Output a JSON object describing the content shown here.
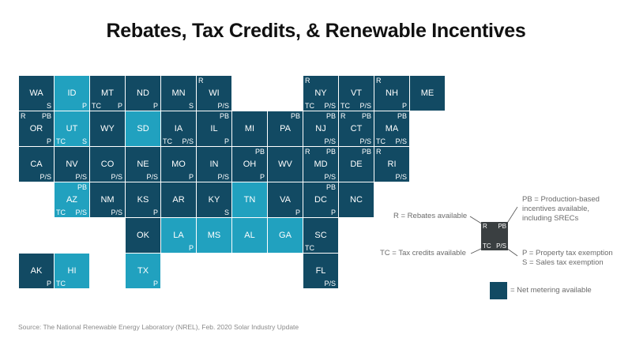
{
  "title": "Rebates, Tax Credits, & Renewable Incentives",
  "colors": {
    "net_metering": "#124a63",
    "no_net_metering": "#21a1bf",
    "legend_example": "#3a3f41"
  },
  "states": [
    {
      "ab": "WA",
      "col": 0,
      "row": 0,
      "net": true,
      "R": false,
      "PB": false,
      "TC": false,
      "PS": "S"
    },
    {
      "ab": "ID",
      "col": 1,
      "row": 0,
      "net": false,
      "R": false,
      "PB": false,
      "TC": false,
      "PS": "P"
    },
    {
      "ab": "MT",
      "col": 2,
      "row": 0,
      "net": true,
      "R": false,
      "PB": false,
      "TC": true,
      "PS": "P"
    },
    {
      "ab": "ND",
      "col": 3,
      "row": 0,
      "net": true,
      "R": false,
      "PB": false,
      "TC": false,
      "PS": "P"
    },
    {
      "ab": "MN",
      "col": 4,
      "row": 0,
      "net": true,
      "R": false,
      "PB": false,
      "TC": false,
      "PS": "S"
    },
    {
      "ab": "WI",
      "col": 5,
      "row": 0,
      "net": true,
      "R": true,
      "PB": false,
      "TC": false,
      "PS": "P/S"
    },
    {
      "ab": "NY",
      "col": 8,
      "row": 0,
      "net": true,
      "R": true,
      "PB": false,
      "TC": true,
      "PS": "P/S"
    },
    {
      "ab": "VT",
      "col": 9,
      "row": 0,
      "net": true,
      "R": false,
      "PB": false,
      "TC": true,
      "PS": "P/S"
    },
    {
      "ab": "NH",
      "col": 10,
      "row": 0,
      "net": true,
      "R": true,
      "PB": false,
      "TC": false,
      "PS": "P"
    },
    {
      "ab": "ME",
      "col": 11,
      "row": 0,
      "net": true,
      "R": false,
      "PB": false,
      "TC": false,
      "PS": ""
    },
    {
      "ab": "OR",
      "col": 0,
      "row": 1,
      "net": true,
      "R": true,
      "PB": true,
      "TC": false,
      "PS": "P"
    },
    {
      "ab": "UT",
      "col": 1,
      "row": 1,
      "net": false,
      "R": false,
      "PB": false,
      "TC": true,
      "PS": "S"
    },
    {
      "ab": "WY",
      "col": 2,
      "row": 1,
      "net": true,
      "R": false,
      "PB": false,
      "TC": false,
      "PS": ""
    },
    {
      "ab": "SD",
      "col": 3,
      "row": 1,
      "net": false,
      "R": false,
      "PB": false,
      "TC": false,
      "PS": ""
    },
    {
      "ab": "IA",
      "col": 4,
      "row": 1,
      "net": true,
      "R": false,
      "PB": false,
      "TC": true,
      "PS": "P/S"
    },
    {
      "ab": "IL",
      "col": 5,
      "row": 1,
      "net": true,
      "R": false,
      "PB": true,
      "TC": false,
      "PS": "P"
    },
    {
      "ab": "MI",
      "col": 6,
      "row": 1,
      "net": true,
      "R": false,
      "PB": false,
      "TC": false,
      "PS": ""
    },
    {
      "ab": "PA",
      "col": 7,
      "row": 1,
      "net": true,
      "R": false,
      "PB": true,
      "TC": false,
      "PS": ""
    },
    {
      "ab": "NJ",
      "col": 8,
      "row": 1,
      "net": true,
      "R": false,
      "PB": true,
      "TC": false,
      "PS": "P/S"
    },
    {
      "ab": "CT",
      "col": 9,
      "row": 1,
      "net": true,
      "R": true,
      "PB": true,
      "TC": false,
      "PS": "P/S"
    },
    {
      "ab": "MA",
      "col": 10,
      "row": 1,
      "net": true,
      "R": false,
      "PB": true,
      "TC": true,
      "PS": "P/S"
    },
    {
      "ab": "CA",
      "col": 0,
      "row": 2,
      "net": true,
      "R": false,
      "PB": false,
      "TC": false,
      "PS": "P/S"
    },
    {
      "ab": "NV",
      "col": 1,
      "row": 2,
      "net": true,
      "R": false,
      "PB": false,
      "TC": false,
      "PS": "P/S"
    },
    {
      "ab": "CO",
      "col": 2,
      "row": 2,
      "net": true,
      "R": false,
      "PB": false,
      "TC": false,
      "PS": "P/S"
    },
    {
      "ab": "NE",
      "col": 3,
      "row": 2,
      "net": true,
      "R": false,
      "PB": false,
      "TC": false,
      "PS": "P/S"
    },
    {
      "ab": "MO",
      "col": 4,
      "row": 2,
      "net": true,
      "R": false,
      "PB": false,
      "TC": false,
      "PS": "P"
    },
    {
      "ab": "IN",
      "col": 5,
      "row": 2,
      "net": true,
      "R": false,
      "PB": false,
      "TC": false,
      "PS": "P/S"
    },
    {
      "ab": "OH",
      "col": 6,
      "row": 2,
      "net": true,
      "R": false,
      "PB": true,
      "TC": false,
      "PS": "P"
    },
    {
      "ab": "WV",
      "col": 7,
      "row": 2,
      "net": true,
      "R": false,
      "PB": false,
      "TC": false,
      "PS": ""
    },
    {
      "ab": "MD",
      "col": 8,
      "row": 2,
      "net": true,
      "R": true,
      "PB": true,
      "TC": false,
      "PS": "P/S"
    },
    {
      "ab": "DE",
      "col": 9,
      "row": 2,
      "net": true,
      "R": false,
      "PB": true,
      "TC": false,
      "PS": ""
    },
    {
      "ab": "RI",
      "col": 10,
      "row": 2,
      "net": true,
      "R": true,
      "PB": false,
      "TC": false,
      "PS": "P/S"
    },
    {
      "ab": "AZ",
      "col": 1,
      "row": 3,
      "net": false,
      "R": false,
      "PB": true,
      "TC": true,
      "PS": "P/S"
    },
    {
      "ab": "NM",
      "col": 2,
      "row": 3,
      "net": true,
      "R": false,
      "PB": false,
      "TC": false,
      "PS": "P/S"
    },
    {
      "ab": "KS",
      "col": 3,
      "row": 3,
      "net": true,
      "R": false,
      "PB": false,
      "TC": false,
      "PS": "P"
    },
    {
      "ab": "AR",
      "col": 4,
      "row": 3,
      "net": true,
      "R": false,
      "PB": false,
      "TC": false,
      "PS": ""
    },
    {
      "ab": "KY",
      "col": 5,
      "row": 3,
      "net": true,
      "R": false,
      "PB": false,
      "TC": false,
      "PS": "S"
    },
    {
      "ab": "TN",
      "col": 6,
      "row": 3,
      "net": false,
      "R": false,
      "PB": false,
      "TC": false,
      "PS": ""
    },
    {
      "ab": "VA",
      "col": 7,
      "row": 3,
      "net": true,
      "R": false,
      "PB": false,
      "TC": false,
      "PS": "P"
    },
    {
      "ab": "DC",
      "col": 8,
      "row": 3,
      "net": true,
      "R": false,
      "PB": true,
      "TC": false,
      "PS": "P"
    },
    {
      "ab": "NC",
      "col": 9,
      "row": 3,
      "net": true,
      "R": false,
      "PB": false,
      "TC": false,
      "PS": ""
    },
    {
      "ab": "OK",
      "col": 3,
      "row": 4,
      "net": true,
      "R": false,
      "PB": false,
      "TC": false,
      "PS": ""
    },
    {
      "ab": "LA",
      "col": 4,
      "row": 4,
      "net": false,
      "R": false,
      "PB": false,
      "TC": false,
      "PS": "P"
    },
    {
      "ab": "MS",
      "col": 5,
      "row": 4,
      "net": false,
      "R": false,
      "PB": false,
      "TC": false,
      "PS": ""
    },
    {
      "ab": "AL",
      "col": 6,
      "row": 4,
      "net": false,
      "R": false,
      "PB": false,
      "TC": false,
      "PS": ""
    },
    {
      "ab": "GA",
      "col": 7,
      "row": 4,
      "net": false,
      "R": false,
      "PB": false,
      "TC": false,
      "PS": ""
    },
    {
      "ab": "SC",
      "col": 8,
      "row": 4,
      "net": true,
      "R": false,
      "PB": false,
      "TC": true,
      "PS": ""
    },
    {
      "ab": "AK",
      "col": 0,
      "row": 5,
      "net": true,
      "R": false,
      "PB": false,
      "TC": false,
      "PS": "P"
    },
    {
      "ab": "HI",
      "col": 1,
      "row": 5,
      "net": false,
      "R": false,
      "PB": false,
      "TC": true,
      "PS": ""
    },
    {
      "ab": "TX",
      "col": 3,
      "row": 5,
      "net": false,
      "R": false,
      "PB": false,
      "TC": false,
      "PS": "P"
    },
    {
      "ab": "FL",
      "col": 8,
      "row": 5,
      "net": true,
      "R": false,
      "PB": false,
      "TC": false,
      "PS": "P/S"
    }
  ],
  "codes": {
    "r": "R",
    "pb": "PB",
    "tc": "TC"
  },
  "legend": {
    "rebates": "R = Rebates available",
    "pb_line1": "PB = Production-based",
    "pb_line2": "incentives available,",
    "pb_line3": "including SRECs",
    "tc": "TC = Tax credits available",
    "p": "P = Property tax exemption",
    "s": "S = Sales tax exemption",
    "net": "= Net metering available",
    "tile_r": "R",
    "tile_pb": "PB",
    "tile_tc": "TC",
    "tile_ps": "P/S"
  },
  "source": "Source: The National Renewable Energy Laboratory (NREL), Feb. 2020 Solar Industry Update"
}
